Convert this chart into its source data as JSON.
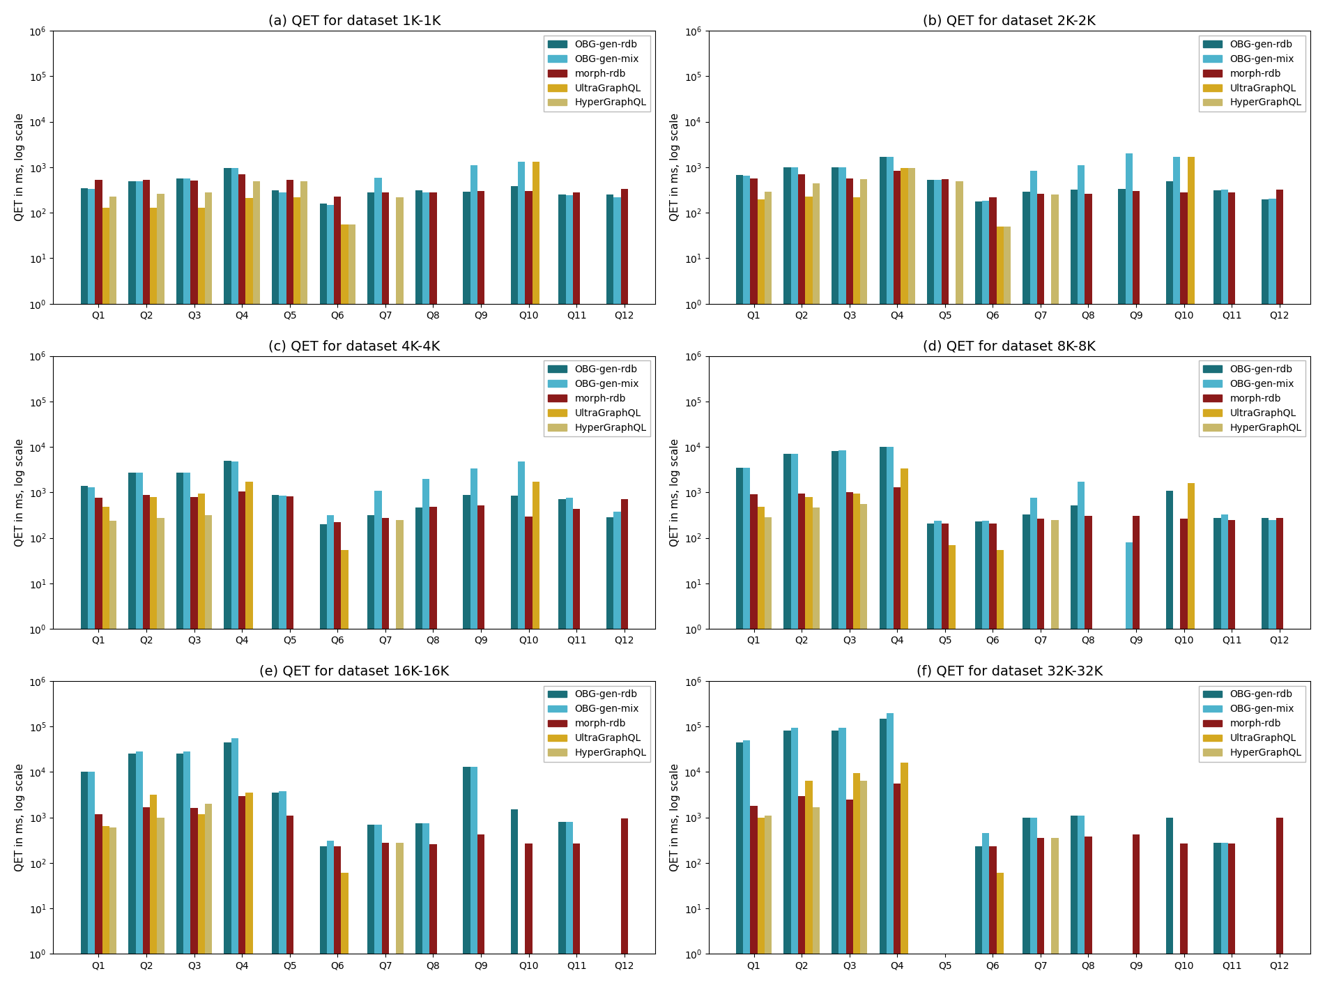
{
  "titles": [
    "(a) QET for dataset 1K-1K",
    "(b) QET for dataset 2K-2K",
    "(c) QET for dataset 4K-4K",
    "(d) QET for dataset 8K-8K",
    "(e) QET for dataset 16K-16K",
    "(f) QET for dataset 32K-32K"
  ],
  "queries": [
    "Q1",
    "Q2",
    "Q3",
    "Q4",
    "Q5",
    "Q6",
    "Q7",
    "Q8",
    "Q9",
    "Q10",
    "Q11",
    "Q12"
  ],
  "series_names": [
    "OBG-gen-rdb",
    "OBG-gen-mix",
    "morph-rdb",
    "UltraGraphQL",
    "HyperGraphQL"
  ],
  "colors": [
    "#1a6e78",
    "#4db3cc",
    "#8b1a1a",
    "#d4a820",
    "#c8b86a"
  ],
  "data": {
    "1K-1K": {
      "OBG-gen-rdb": [
        350,
        500,
        560,
        970,
        310,
        160,
        280,
        310,
        290,
        380,
        250,
        250
      ],
      "OBG-gen-mix": [
        330,
        490,
        570,
        950,
        285,
        150,
        590,
        285,
        1100,
        1300,
        240,
        220
      ],
      "morph-rdb": [
        530,
        520,
        510,
        700,
        530,
        230,
        280,
        280,
        300,
        300,
        285,
        330
      ],
      "UltraGraphQL": [
        130,
        130,
        130,
        210,
        220,
        55,
        null,
        null,
        null,
        1300,
        null,
        null
      ],
      "HyperGraphQL": [
        225,
        265,
        280,
        490,
        490,
        55,
        215,
        null,
        null,
        null,
        null,
        null
      ]
    },
    "2K-2K": {
      "OBG-gen-rdb": [
        680,
        1000,
        1000,
        1700,
        520,
        175,
        290,
        320,
        330,
        490,
        315,
        200
      ],
      "OBG-gen-mix": [
        660,
        1000,
        1000,
        1700,
        530,
        185,
        850,
        1100,
        2000,
        1700,
        325,
        205
      ],
      "morph-rdb": [
        570,
        690,
        560,
        850,
        540,
        215,
        265,
        265,
        300,
        280,
        280,
        325
      ],
      "UltraGraphQL": [
        195,
        230,
        220,
        960,
        null,
        50,
        null,
        null,
        null,
        1700,
        null,
        null
      ],
      "HyperGraphQL": [
        295,
        450,
        540,
        960,
        500,
        50,
        250,
        null,
        null,
        null,
        null,
        null
      ]
    },
    "4K-4K": {
      "OBG-gen-rdb": [
        1400,
        2700,
        2700,
        5000,
        870,
        200,
        320,
        470,
        870,
        850,
        700,
        280
      ],
      "OBG-gen-mix": [
        1300,
        2700,
        2700,
        4800,
        850,
        310,
        1100,
        2000,
        3300,
        4800,
        760,
        370
      ],
      "morph-rdb": [
        770,
        870,
        800,
        1050,
        810,
        220,
        270,
        480,
        520,
        290,
        430,
        700
      ],
      "UltraGraphQL": [
        480,
        780,
        950,
        1700,
        null,
        55,
        null,
        null,
        null,
        1700,
        null,
        null
      ],
      "HyperGraphQL": [
        240,
        270,
        310,
        null,
        null,
        null,
        250,
        null,
        null,
        null,
        null,
        null
      ]
    },
    "8K-8K": {
      "OBG-gen-rdb": [
        3500,
        7000,
        8000,
        10000,
        210,
        230,
        330,
        520,
        null,
        1100,
        270,
        270
      ],
      "OBG-gen-mix": [
        3500,
        7000,
        8500,
        10000,
        240,
        240,
        770,
        1700,
        80,
        null,
        330,
        250
      ],
      "morph-rdb": [
        900,
        950,
        1000,
        1300,
        210,
        210,
        260,
        300,
        300,
        260,
        250,
        270
      ],
      "UltraGraphQL": [
        480,
        780,
        950,
        3300,
        70,
        55,
        null,
        null,
        null,
        1600,
        null,
        null
      ],
      "HyperGraphQL": [
        280,
        460,
        560,
        null,
        null,
        null,
        250,
        null,
        null,
        null,
        null,
        null
      ]
    },
    "16K-16K": {
      "OBG-gen-rdb": [
        10000,
        25000,
        25000,
        45000,
        3500,
        230,
        700,
        750,
        13000,
        1500,
        800,
        null
      ],
      "OBG-gen-mix": [
        10000,
        28000,
        28000,
        55000,
        3800,
        310,
        700,
        750,
        13000,
        null,
        800,
        null
      ],
      "morph-rdb": [
        1200,
        1700,
        1600,
        3000,
        1100,
        230,
        280,
        260,
        430,
        270,
        270,
        950
      ],
      "UltraGraphQL": [
        650,
        3200,
        1200,
        3500,
        null,
        60,
        null,
        null,
        null,
        null,
        null,
        null
      ],
      "HyperGraphQL": [
        600,
        1000,
        2000,
        null,
        null,
        null,
        280,
        null,
        null,
        null,
        null,
        null
      ]
    },
    "32K-32K": {
      "OBG-gen-rdb": [
        45000,
        80000,
        80000,
        150000,
        null,
        230,
        1000,
        1100,
        null,
        1000,
        280,
        null
      ],
      "OBG-gen-mix": [
        50000,
        95000,
        95000,
        200000,
        null,
        450,
        1000,
        1100,
        null,
        null,
        280,
        null
      ],
      "morph-rdb": [
        1800,
        3000,
        2500,
        5500,
        null,
        230,
        350,
        380,
        430,
        270,
        270,
        980
      ],
      "UltraGraphQL": [
        1000,
        6500,
        9500,
        16000,
        null,
        60,
        null,
        null,
        null,
        null,
        null,
        null
      ],
      "HyperGraphQL": [
        1100,
        1700,
        6500,
        null,
        null,
        null,
        350,
        null,
        null,
        null,
        null,
        null
      ]
    }
  },
  "ylabel": "QET in ms, log scale",
  "ylim": [
    1,
    1000000
  ]
}
